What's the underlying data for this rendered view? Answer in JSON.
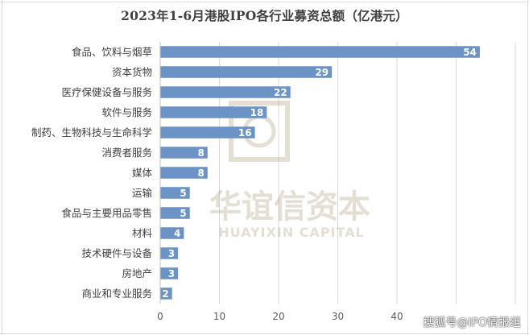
{
  "chart_data": {
    "type": "bar",
    "orientation": "horizontal",
    "title": "2023年1-6月港股IPO各行业募资总额（亿港元）",
    "categories": [
      "食品、饮料与烟草",
      "资本货物",
      "医疗保健设备与服务",
      "软件与服务",
      "制药、生物科技与生命科学",
      "消费者服务",
      "媒体",
      "运输",
      "食品与主要用品零售",
      "材料",
      "技术硬件与设备",
      "房地产",
      "商业和专业服务"
    ],
    "values": [
      54,
      29,
      22,
      18,
      16,
      8,
      8,
      5,
      5,
      4,
      3,
      3,
      2
    ],
    "xticks": [
      "0",
      "10",
      "20",
      "30",
      "40"
    ],
    "xlim": [
      0,
      60
    ],
    "grid": "vertical",
    "bar_color": "#6b93c6",
    "label_color": "#ffffff"
  },
  "watermark": {
    "logo_text": "华谊信资本",
    "logo_subtext": "HUAYIXIN CAPITAL"
  },
  "credit": "搜狐号@IPO情报组"
}
